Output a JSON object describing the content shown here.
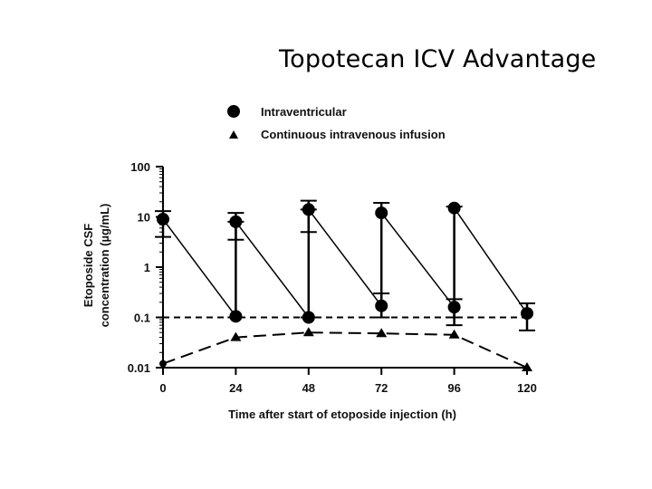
{
  "slide": {
    "title": "Topotecan ICV Advantage"
  },
  "chart_data": {
    "type": "line",
    "xlabel": "Time after start of etoposide injection (h)",
    "ylabel_line1": "Etoposide CSF",
    "ylabel_line2": "concentration (µg/mL)",
    "x_ticks": [
      0,
      24,
      48,
      72,
      96,
      120
    ],
    "y_ticks": [
      0.01,
      0.1,
      1,
      10,
      100
    ],
    "y_tick_labels": [
      "0.01",
      "0.1",
      "1",
      "10",
      "100"
    ],
    "xlim": [
      0,
      120
    ],
    "ylim": [
      0.01,
      100
    ],
    "yscale": "log",
    "legend_position": "top",
    "series": [
      {
        "name": "Intraventricular",
        "marker": "circle",
        "color": "#000000",
        "x": [
          0,
          24,
          24,
          48,
          48,
          72,
          72,
          96,
          96,
          120
        ],
        "y": [
          9,
          0.105,
          8,
          0.1,
          14,
          0.17,
          12,
          0.16,
          15,
          0.12
        ],
        "error_bars": [
          {
            "x": 0,
            "low": 4,
            "high": 13
          },
          {
            "x": 24,
            "low": 0.1,
            "high": 12
          },
          {
            "x": 48,
            "low": 0.1,
            "high": 21
          },
          {
            "x": 72,
            "low": 0.1,
            "high": 19
          },
          {
            "x": 96,
            "low": 0.1,
            "high": 16
          },
          {
            "x": 120,
            "low": 0.055,
            "high": 0.19
          }
        ],
        "low_whiskers": [
          {
            "x": 24,
            "low": 3.5,
            "high": 8
          },
          {
            "x": 48,
            "low": 5,
            "high": 14
          },
          {
            "x": 72,
            "low": 0.1,
            "high": 0.3
          },
          {
            "x": 96,
            "low": 0.07,
            "high": 0.23
          }
        ]
      },
      {
        "name": "Continuous intravenous infusion",
        "marker": "triangle",
        "color": "#000000",
        "x": [
          0,
          24,
          48,
          72,
          96,
          120
        ],
        "y": [
          0.012,
          0.04,
          0.05,
          0.048,
          0.045,
          0.01
        ]
      }
    ],
    "reference_line": {
      "y": 0.1
    }
  }
}
